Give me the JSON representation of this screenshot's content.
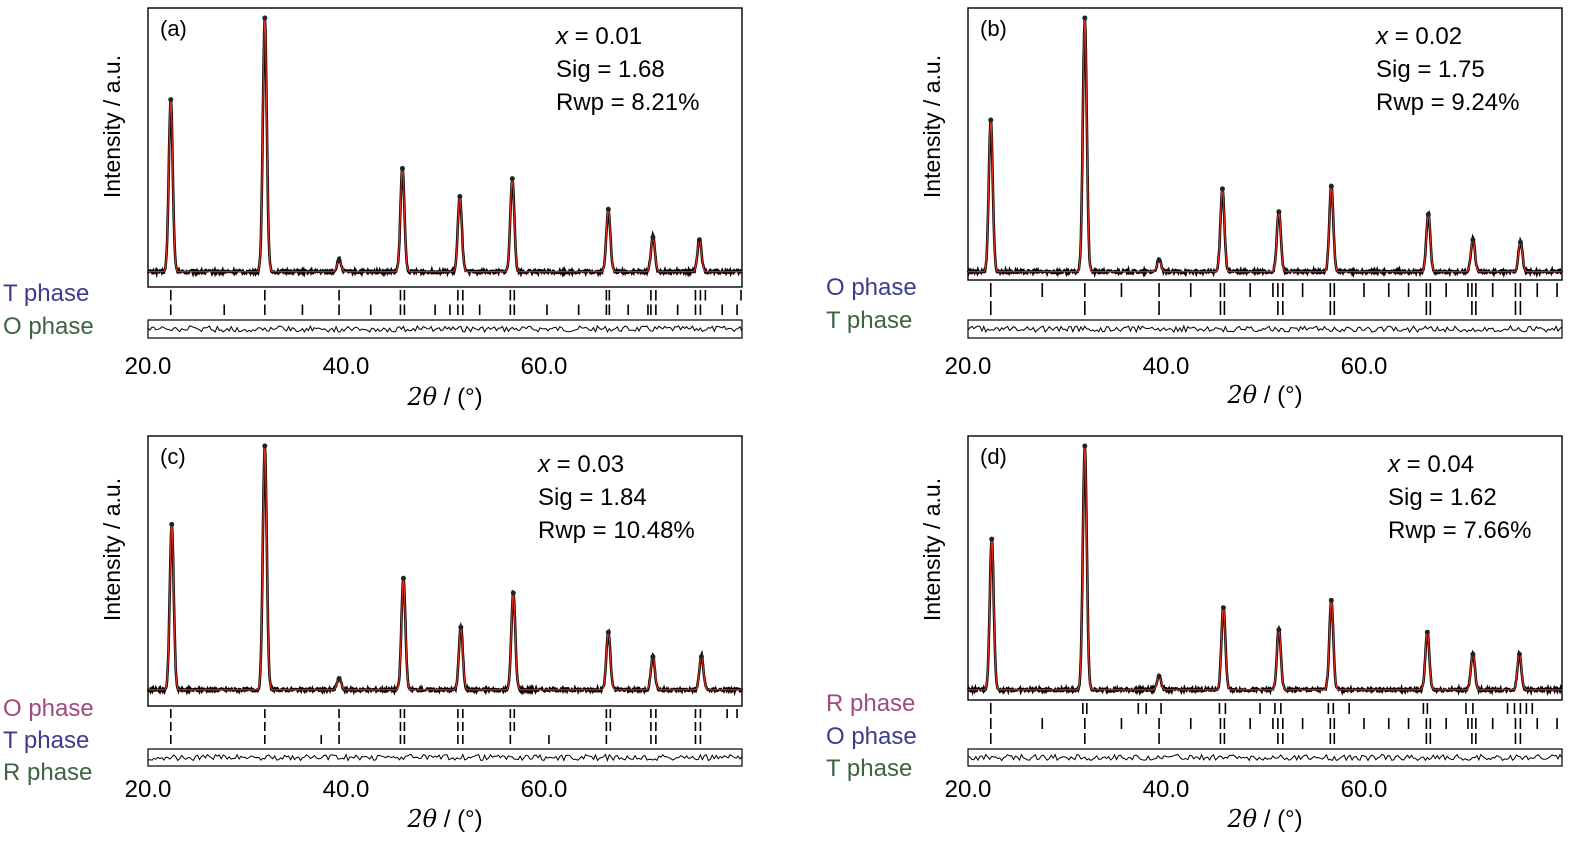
{
  "chart_data": [
    {
      "type": "line",
      "panel_label": "(a)",
      "ylabel": "Intensity / a.u.",
      "xlabel_symbol": "2θ",
      "xlabel_unit": "/ (°)",
      "x_ticks": [
        "20.0",
        "40.0",
        "60.0"
      ],
      "xlim": [
        20,
        80
      ],
      "stats": [
        {
          "label": "x",
          "value": "= 0.01"
        },
        {
          "label": "Sig",
          "value": "= 1.68"
        },
        {
          "label": "Rwp",
          "value": "= 8.21%"
        }
      ],
      "phases": [
        {
          "name": "T phase",
          "color": "#3c3c8c",
          "reflections": [
            22.3,
            31.8,
            39.3,
            45.5,
            45.9,
            51.3,
            51.8,
            56.6,
            57.0,
            66.3,
            66.6,
            70.8,
            71.3,
            75.3,
            75.8,
            76.3,
            79.9
          ]
        },
        {
          "name": "O phase",
          "color": "#3c6440",
          "reflections": [
            22.3,
            31.8,
            27.7,
            35.6,
            39.3,
            42.5,
            45.5,
            45.9,
            49.0,
            50.5,
            51.3,
            51.8,
            53.5,
            56.6,
            57.0,
            60.3,
            63.5,
            66.3,
            66.6,
            68.5,
            70.5,
            70.8,
            71.3,
            73.5,
            75.3,
            75.8,
            78.0,
            79.5
          ]
        }
      ],
      "peaks": [
        {
          "pos": 22.3,
          "height": 0.68
        },
        {
          "pos": 31.8,
          "height": 1.0
        },
        {
          "pos": 39.3,
          "height": 0.05
        },
        {
          "pos": 45.7,
          "height": 0.41
        },
        {
          "pos": 51.5,
          "height": 0.3
        },
        {
          "pos": 56.8,
          "height": 0.37
        },
        {
          "pos": 66.5,
          "height": 0.25
        },
        {
          "pos": 71.0,
          "height": 0.14
        },
        {
          "pos": 75.7,
          "height": 0.13
        }
      ]
    },
    {
      "type": "line",
      "panel_label": "(b)",
      "ylabel": "Intensity / a.u.",
      "xlabel_symbol": "2θ",
      "xlabel_unit": "/ (°)",
      "x_ticks": [
        "20.0",
        "40.0",
        "60.0"
      ],
      "xlim": [
        20,
        80
      ],
      "stats": [
        {
          "label": "x",
          "value": "= 0.02"
        },
        {
          "label": "Sig",
          "value": "= 1.75"
        },
        {
          "label": "Rwp",
          "value": "= 9.24%"
        }
      ],
      "phases": [
        {
          "name": "O phase",
          "color": "#3c3c8c",
          "reflections": [
            22.3,
            27.5,
            31.8,
            35.5,
            39.3,
            42.5,
            45.5,
            45.9,
            48.5,
            50.8,
            51.3,
            51.8,
            53.8,
            56.6,
            57.0,
            60.0,
            62.5,
            64.5,
            66.3,
            66.7,
            68.3,
            70.5,
            70.9,
            71.3,
            73.0,
            75.3,
            75.8,
            77.5,
            79.5
          ]
        },
        {
          "name": "T phase",
          "color": "#3c6440",
          "reflections": [
            22.3,
            31.8,
            39.3,
            45.5,
            45.9,
            51.3,
            51.8,
            56.6,
            57.0,
            66.3,
            66.7,
            70.9,
            71.3,
            75.3,
            75.8
          ]
        }
      ],
      "peaks": [
        {
          "pos": 22.3,
          "height": 0.6
        },
        {
          "pos": 31.8,
          "height": 1.0
        },
        {
          "pos": 39.3,
          "height": 0.05
        },
        {
          "pos": 45.7,
          "height": 0.33
        },
        {
          "pos": 51.4,
          "height": 0.24
        },
        {
          "pos": 56.7,
          "height": 0.34
        },
        {
          "pos": 66.5,
          "height": 0.23
        },
        {
          "pos": 71.0,
          "height": 0.13
        },
        {
          "pos": 75.8,
          "height": 0.12
        }
      ]
    },
    {
      "type": "line",
      "panel_label": "(c)",
      "ylabel": "Intensity / a.u.",
      "xlabel_symbol": "2θ",
      "xlabel_unit": "/ (°)",
      "x_ticks": [
        "20.0",
        "40.0",
        "60.0"
      ],
      "xlim": [
        20,
        80
      ],
      "stats": [
        {
          "label": "x",
          "value": "= 0.03"
        },
        {
          "label": "Sig",
          "value": "= 1.84"
        },
        {
          "label": "Rwp",
          "value": "= 10.48%"
        }
      ],
      "phases": [
        {
          "name": "O phase",
          "color": "#a04a80",
          "reflections": [
            22.3,
            31.8,
            39.3,
            45.5,
            45.9,
            51.3,
            51.8,
            56.6,
            57.0,
            66.3,
            66.7,
            70.8,
            71.3,
            75.3,
            75.8,
            78.5,
            79.5
          ]
        },
        {
          "name": "T phase",
          "color": "#3c3c8c",
          "reflections": [
            22.3,
            31.8,
            39.3,
            45.5,
            45.9,
            51.3,
            51.8,
            56.6,
            57.0,
            66.3,
            66.7,
            70.8,
            71.3,
            75.3,
            75.8
          ]
        },
        {
          "name": "R phase",
          "color": "#3c6440",
          "reflections": [
            22.3,
            31.8,
            37.5,
            39.3,
            45.5,
            45.9,
            51.3,
            51.8,
            56.6,
            60.5,
            66.3,
            70.8,
            71.3,
            75.3,
            75.8
          ]
        }
      ],
      "peaks": [
        {
          "pos": 22.4,
          "height": 0.68
        },
        {
          "pos": 31.8,
          "height": 1.0
        },
        {
          "pos": 39.3,
          "height": 0.05
        },
        {
          "pos": 45.8,
          "height": 0.46
        },
        {
          "pos": 51.6,
          "height": 0.26
        },
        {
          "pos": 56.9,
          "height": 0.4
        },
        {
          "pos": 66.5,
          "height": 0.24
        },
        {
          "pos": 71.0,
          "height": 0.14
        },
        {
          "pos": 75.9,
          "height": 0.14
        }
      ]
    },
    {
      "type": "line",
      "panel_label": "(d)",
      "ylabel": "Intensity / a.u.",
      "xlabel_symbol": "2θ",
      "xlabel_unit": "/ (°)",
      "x_ticks": [
        "20.0",
        "40.0",
        "60.0"
      ],
      "xlim": [
        20,
        80
      ],
      "stats": [
        {
          "label": "x",
          "value": "= 0.04"
        },
        {
          "label": "Sig",
          "value": "= 1.62"
        },
        {
          "label": "Rwp",
          "value": "= 7.66%"
        }
      ],
      "phases": [
        {
          "name": "R phase",
          "color": "#a04a80",
          "reflections": [
            22.3,
            31.6,
            32.0,
            37.2,
            38.0,
            39.5,
            45.4,
            46.0,
            49.5,
            51.0,
            51.6,
            56.4,
            56.9,
            58.5,
            66.0,
            66.4,
            70.3,
            71.0,
            74.5,
            75.2,
            75.8,
            76.4,
            77.0
          ]
        },
        {
          "name": "O phase",
          "color": "#3c3c8c",
          "reflections": [
            22.3,
            27.5,
            31.8,
            35.5,
            39.3,
            42.5,
            45.5,
            45.9,
            48.5,
            50.8,
            51.3,
            51.8,
            53.8,
            56.6,
            57.0,
            60.0,
            62.5,
            64.5,
            66.3,
            66.7,
            68.3,
            70.5,
            70.9,
            71.3,
            73.0,
            75.3,
            75.8,
            77.5,
            79.5
          ]
        },
        {
          "name": "T phase",
          "color": "#3c6440",
          "reflections": [
            22.3,
            31.8,
            39.3,
            45.5,
            45.9,
            51.3,
            51.8,
            56.6,
            57.0,
            66.3,
            66.7,
            70.9,
            71.3,
            75.3,
            75.8
          ]
        }
      ],
      "peaks": [
        {
          "pos": 22.4,
          "height": 0.62
        },
        {
          "pos": 31.8,
          "height": 1.0
        },
        {
          "pos": 39.3,
          "height": 0.06
        },
        {
          "pos": 45.8,
          "height": 0.34
        },
        {
          "pos": 51.4,
          "height": 0.25
        },
        {
          "pos": 56.7,
          "height": 0.37
        },
        {
          "pos": 66.4,
          "height": 0.24
        },
        {
          "pos": 71.0,
          "height": 0.15
        },
        {
          "pos": 75.7,
          "height": 0.15
        }
      ]
    }
  ]
}
